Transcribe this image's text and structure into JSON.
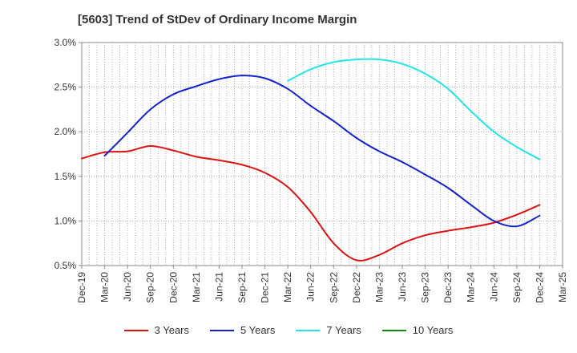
{
  "title": "[5603]  Trend of StDev of Ordinary Income Margin",
  "colors": {
    "3y": "#dd1111",
    "5y": "#1122cc",
    "7y": "#22e5e5",
    "10y": "#118811",
    "grid": "#999999",
    "axis": "#888888"
  },
  "chart_data": {
    "type": "line",
    "title": "[5603]  Trend of StDev of Ordinary Income Margin",
    "xlabel": "",
    "ylabel": "",
    "x_ticks": [
      "Dec-19",
      "Mar-20",
      "Jun-20",
      "Sep-20",
      "Dec-20",
      "Mar-21",
      "Jun-21",
      "Sep-21",
      "Dec-21",
      "Mar-22",
      "Jun-22",
      "Sep-22",
      "Dec-22",
      "Mar-23",
      "Jun-23",
      "Sep-23",
      "Dec-23",
      "Mar-24",
      "Jun-24",
      "Sep-24",
      "Dec-24",
      "Mar-25"
    ],
    "y_ticks": [
      "0.5%",
      "1.0%",
      "1.5%",
      "2.0%",
      "2.5%",
      "3.0%"
    ],
    "ylim": [
      0.5,
      3.0
    ],
    "grid": true,
    "legend_position": "bottom",
    "series": [
      {
        "name": "3 Years",
        "color_key": "3y",
        "points": [
          [
            "Dec-19",
            1.7
          ],
          [
            "Mar-20",
            1.77
          ],
          [
            "Jun-20",
            1.78
          ],
          [
            "Sep-20",
            1.84
          ],
          [
            "Dec-20",
            1.79
          ],
          [
            "Mar-21",
            1.72
          ],
          [
            "Jun-21",
            1.68
          ],
          [
            "Sep-21",
            1.63
          ],
          [
            "Dec-21",
            1.54
          ],
          [
            "Mar-22",
            1.38
          ],
          [
            "Jun-22",
            1.1
          ],
          [
            "Sep-22",
            0.75
          ],
          [
            "Dec-22",
            0.56
          ],
          [
            "Mar-23",
            0.62
          ],
          [
            "Jun-23",
            0.75
          ],
          [
            "Sep-23",
            0.84
          ],
          [
            "Dec-23",
            0.89
          ],
          [
            "Mar-24",
            0.93
          ],
          [
            "Jun-24",
            0.98
          ],
          [
            "Sep-24",
            1.07
          ],
          [
            "Dec-24",
            1.18
          ]
        ]
      },
      {
        "name": "5 Years",
        "color_key": "5y",
        "points": [
          [
            "Mar-20",
            1.73
          ],
          [
            "Jun-20",
            1.99
          ],
          [
            "Sep-20",
            2.25
          ],
          [
            "Dec-20",
            2.42
          ],
          [
            "Mar-21",
            2.51
          ],
          [
            "Jun-21",
            2.59
          ],
          [
            "Sep-21",
            2.63
          ],
          [
            "Dec-21",
            2.6
          ],
          [
            "Mar-22",
            2.48
          ],
          [
            "Jun-22",
            2.29
          ],
          [
            "Sep-22",
            2.12
          ],
          [
            "Dec-22",
            1.93
          ],
          [
            "Mar-23",
            1.78
          ],
          [
            "Jun-23",
            1.66
          ],
          [
            "Sep-23",
            1.52
          ],
          [
            "Dec-23",
            1.37
          ],
          [
            "Mar-24",
            1.18
          ],
          [
            "Jun-24",
            1.0
          ],
          [
            "Sep-24",
            0.94
          ],
          [
            "Dec-24",
            1.06
          ]
        ]
      },
      {
        "name": "7 Years",
        "color_key": "7y",
        "points": [
          [
            "Mar-22",
            2.57
          ],
          [
            "Jun-22",
            2.7
          ],
          [
            "Sep-22",
            2.78
          ],
          [
            "Dec-22",
            2.81
          ],
          [
            "Mar-23",
            2.81
          ],
          [
            "Jun-23",
            2.76
          ],
          [
            "Sep-23",
            2.65
          ],
          [
            "Dec-23",
            2.48
          ],
          [
            "Mar-24",
            2.23
          ],
          [
            "Jun-24",
            2.0
          ],
          [
            "Sep-24",
            1.83
          ],
          [
            "Dec-24",
            1.69
          ]
        ]
      },
      {
        "name": "10 Years",
        "color_key": "10y",
        "points": []
      }
    ]
  }
}
